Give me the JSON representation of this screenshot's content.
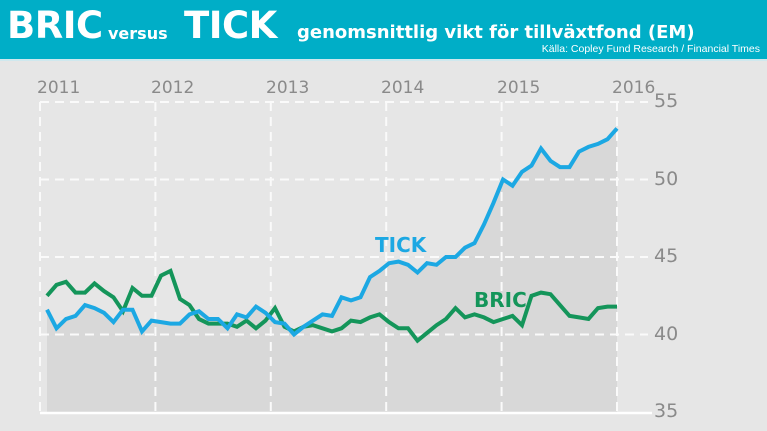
{
  "header": {
    "title_a": "BRIC",
    "versus": "versus",
    "title_b": "TICK",
    "subtitle": "genomsnittlig vikt för tillväxtfond (EM)",
    "source": "Källa: Copley Fund Research / Financial Times"
  },
  "colors": {
    "header_bg": "#00aec7",
    "tick": "#1ca8e3",
    "bric": "#14955a",
    "background": "#e6e6e6",
    "area": "#d8d8d8"
  },
  "labels": {
    "tick": "TICK",
    "bric": "BRIC"
  },
  "axis": {
    "x_ticks": [
      "2011",
      "2012",
      "2013",
      "2014",
      "2015",
      "2016"
    ],
    "y_ticks": [
      "55",
      "50",
      "45",
      "40",
      "35"
    ]
  },
  "chart_data": {
    "type": "line",
    "title": "BRIC versus TICK — genomsnittlig vikt för tillväxtfond (EM)",
    "subtitle": "Källa: Copley Fund Research / Financial Times",
    "xlabel": "",
    "ylabel": "",
    "x_range": [
      2011,
      2016
    ],
    "ylim": [
      35,
      55
    ],
    "y_axis_position": "right",
    "grid": true,
    "x_ticks": [
      2011,
      2012,
      2013,
      2014,
      2015,
      2016
    ],
    "y_ticks": [
      35,
      40,
      45,
      50,
      55
    ],
    "series": [
      {
        "name": "TICK",
        "values": [
          41.6,
          40.4,
          41.0,
          41.2,
          41.9,
          41.7,
          41.4,
          40.8,
          41.6,
          41.6,
          40.2,
          40.9,
          40.8,
          40.7,
          40.7,
          41.3,
          41.5,
          41.0,
          41.0,
          40.4,
          41.3,
          41.1,
          41.8,
          41.4,
          40.8,
          40.7,
          40.0,
          40.5,
          40.9,
          41.3,
          41.2,
          42.4,
          42.2,
          42.4,
          43.7,
          44.1,
          44.6,
          44.7,
          44.5,
          44.0,
          44.6,
          44.5,
          45.0,
          45.0,
          45.6,
          45.9,
          47.1,
          48.5,
          50.0,
          49.6,
          50.5,
          50.9,
          52.0,
          51.2,
          50.8,
          50.8,
          51.8,
          52.1,
          52.3,
          52.6,
          53.3
        ],
        "color": "#1ca8e3"
      },
      {
        "name": "BRIC",
        "values": [
          42.5,
          43.2,
          43.4,
          42.7,
          42.7,
          43.3,
          42.8,
          42.4,
          41.5,
          43.0,
          42.5,
          42.5,
          43.8,
          44.1,
          42.3,
          41.9,
          41.0,
          40.7,
          40.7,
          40.7,
          40.5,
          40.9,
          40.4,
          40.9,
          41.7,
          40.5,
          40.2,
          40.5,
          40.6,
          40.4,
          40.2,
          40.4,
          40.9,
          40.8,
          41.1,
          41.3,
          40.8,
          40.4,
          40.4,
          39.6,
          40.1,
          40.6,
          41.0,
          41.7,
          41.1,
          41.3,
          41.1,
          40.8,
          41.0,
          41.2,
          40.6,
          42.5,
          42.7,
          42.6,
          41.9,
          41.2,
          41.1,
          41.0,
          41.7,
          41.8,
          41.8
        ],
        "color": "#14955a"
      }
    ],
    "annotations": [
      {
        "text": "TICK",
        "near": "2014, ~46"
      },
      {
        "text": "BRIC",
        "near": "2014.8, ~42.4"
      }
    ]
  }
}
